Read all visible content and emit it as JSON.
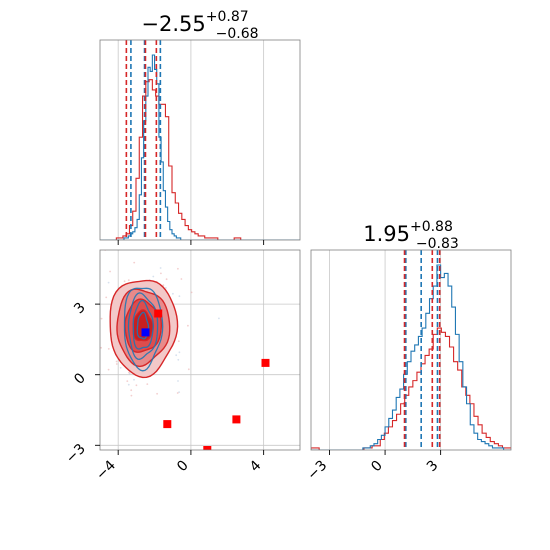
{
  "chart_data": {
    "type": "corner",
    "parameters": [
      {
        "title_main": "−2.55",
        "title_sup": "+0.87",
        "title_sub": "−0.68",
        "xlim": [
          -5.0,
          6.0
        ],
        "ticks": [
          -4,
          0,
          4
        ],
        "tick_labels": [
          "−4",
          "0",
          "4"
        ],
        "quantiles_series_a": [
          -3.3,
          -2.55,
          -1.68
        ],
        "quantiles_series_b": [
          -3.55,
          -2.5,
          -1.9
        ]
      },
      {
        "title_main": "1.95",
        "title_sup": "+0.88",
        "title_sub": "−0.83",
        "xlim": [
          -4.0,
          6.8
        ],
        "ticks": [
          -3,
          0,
          3
        ],
        "tick_labels": [
          "−3",
          "0",
          "3"
        ],
        "quantiles_series_a": [
          1.12,
          1.95,
          2.83
        ],
        "quantiles_series_b": [
          1.05,
          2.55,
          2.95
        ]
      }
    ],
    "joint_panel": {
      "xlim": [
        -5.0,
        6.0
      ],
      "ylim": [
        -3.2,
        5.3
      ],
      "xticks": [
        -4,
        0,
        4
      ],
      "xtick_labels": [
        "−4",
        "0",
        "4"
      ],
      "yticks": [
        -3,
        0,
        3
      ],
      "ytick_labels": [
        "−3",
        "0",
        "3"
      ],
      "truth_point_blue": [
        -2.5,
        1.8
      ],
      "truth_points_red": [
        [
          -1.8,
          2.6
        ],
        [
          4.1,
          0.5
        ],
        [
          -1.3,
          -2.1
        ],
        [
          2.5,
          -1.9
        ],
        [
          0.9,
          -3.2
        ]
      ]
    },
    "series": [
      {
        "color": "#1f77b4",
        "hist1": {
          "start": -5.0,
          "width": 0.12,
          "counts": [
            0,
            0,
            0,
            0,
            0,
            0,
            0,
            0,
            0,
            0,
            0,
            1,
            1,
            2,
            3,
            4,
            6,
            10,
            22,
            40,
            58,
            70,
            84,
            82,
            90,
            83,
            76,
            50,
            38,
            24,
            16,
            9,
            5,
            3,
            2,
            1,
            1,
            0,
            0,
            0,
            0,
            0,
            0,
            0,
            0,
            0,
            0,
            0,
            0,
            0,
            0,
            0,
            0,
            0,
            0,
            0,
            0,
            0,
            0,
            0,
            0,
            0,
            0,
            0,
            0,
            0,
            0,
            0,
            0,
            0,
            0,
            0,
            0,
            0,
            0,
            0,
            0,
            0,
            0,
            0,
            0,
            0,
            0,
            0,
            0,
            0,
            0,
            0,
            0,
            0,
            0,
            0
          ]
        },
        "hist2": {
          "start": -4.0,
          "width": 0.2,
          "counts": [
            0,
            0,
            0,
            0,
            0,
            0,
            0,
            0,
            0,
            0,
            0,
            0,
            0,
            0,
            1,
            1,
            2,
            3,
            5,
            7,
            11,
            15,
            19,
            25,
            29,
            36,
            42,
            47,
            50,
            54,
            58,
            65,
            72,
            78,
            88,
            82,
            84,
            78,
            68,
            55,
            42,
            30,
            22,
            12,
            8,
            5,
            4,
            3,
            2,
            1,
            1,
            1,
            0,
            0,
            0
          ]
        }
      },
      {
        "color": "#d62728",
        "hist1": {
          "start": -5.0,
          "width": 0.18,
          "counts": [
            0,
            0,
            0,
            0,
            0,
            1,
            1,
            2,
            3,
            7,
            14,
            30,
            50,
            70,
            77,
            78,
            73,
            70,
            66,
            66,
            60,
            36,
            23,
            18,
            13,
            10,
            7,
            5,
            4,
            3,
            2,
            2,
            1,
            1,
            1,
            1,
            0,
            0,
            0,
            0,
            0,
            1,
            1,
            0,
            0,
            0,
            0,
            0,
            0,
            0,
            0,
            0,
            0,
            0,
            0,
            0,
            0,
            0,
            0,
            0,
            0
          ]
        },
        "hist2": {
          "start": -4.0,
          "width": 0.22,
          "counts": [
            1,
            1,
            0,
            0,
            0,
            0,
            0,
            0,
            0,
            0,
            0,
            0,
            0,
            1,
            1,
            2,
            2,
            5,
            8,
            11,
            14,
            17,
            22,
            26,
            30,
            33,
            37,
            41,
            45,
            48,
            55,
            58,
            56,
            54,
            49,
            42,
            38,
            30,
            26,
            22,
            16,
            12,
            8,
            6,
            4,
            3,
            2,
            1,
            1,
            1,
            0
          ]
        }
      }
    ]
  }
}
